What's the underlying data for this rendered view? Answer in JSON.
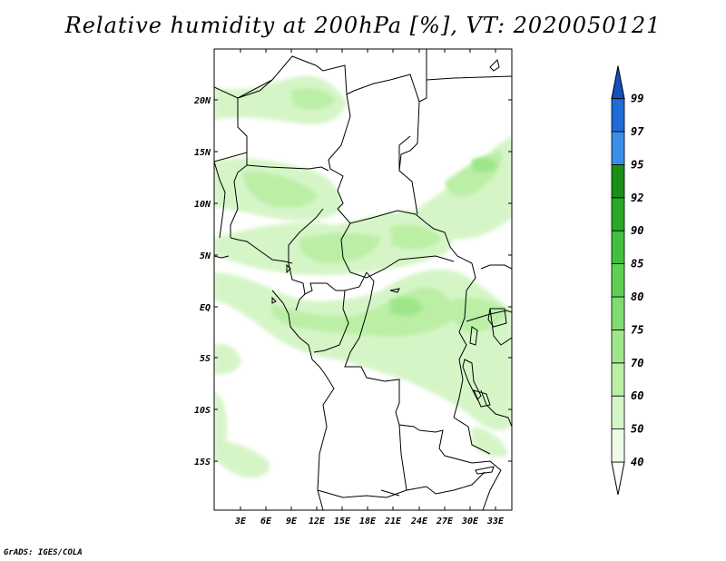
{
  "title": "Relative humidity at 200hPa [%], VT: 2020050121",
  "credit": "GrADS: IGES/COLA",
  "lat_labels": [
    "20N",
    "15N",
    "10N",
    "5N",
    "EQ",
    "5S",
    "10S",
    "15S"
  ],
  "lon_labels": [
    "3E",
    "6E",
    "9E",
    "12E",
    "15E",
    "18E",
    "21E",
    "24E",
    "27E",
    "30E",
    "33E"
  ],
  "colorbar": {
    "labels": [
      "40",
      "50",
      "60",
      "70",
      "75",
      "80",
      "85",
      "90",
      "92",
      "95",
      "97",
      "99"
    ],
    "colors": [
      "#eefbe6",
      "#d5f5c7",
      "#bbefa6",
      "#9fe68a",
      "#80dc6e",
      "#5fcf53",
      "#42bf3c",
      "#2aa826",
      "#1a8f16",
      "#3a8ee6",
      "#1f6bd8",
      "#134fbf"
    ]
  }
}
